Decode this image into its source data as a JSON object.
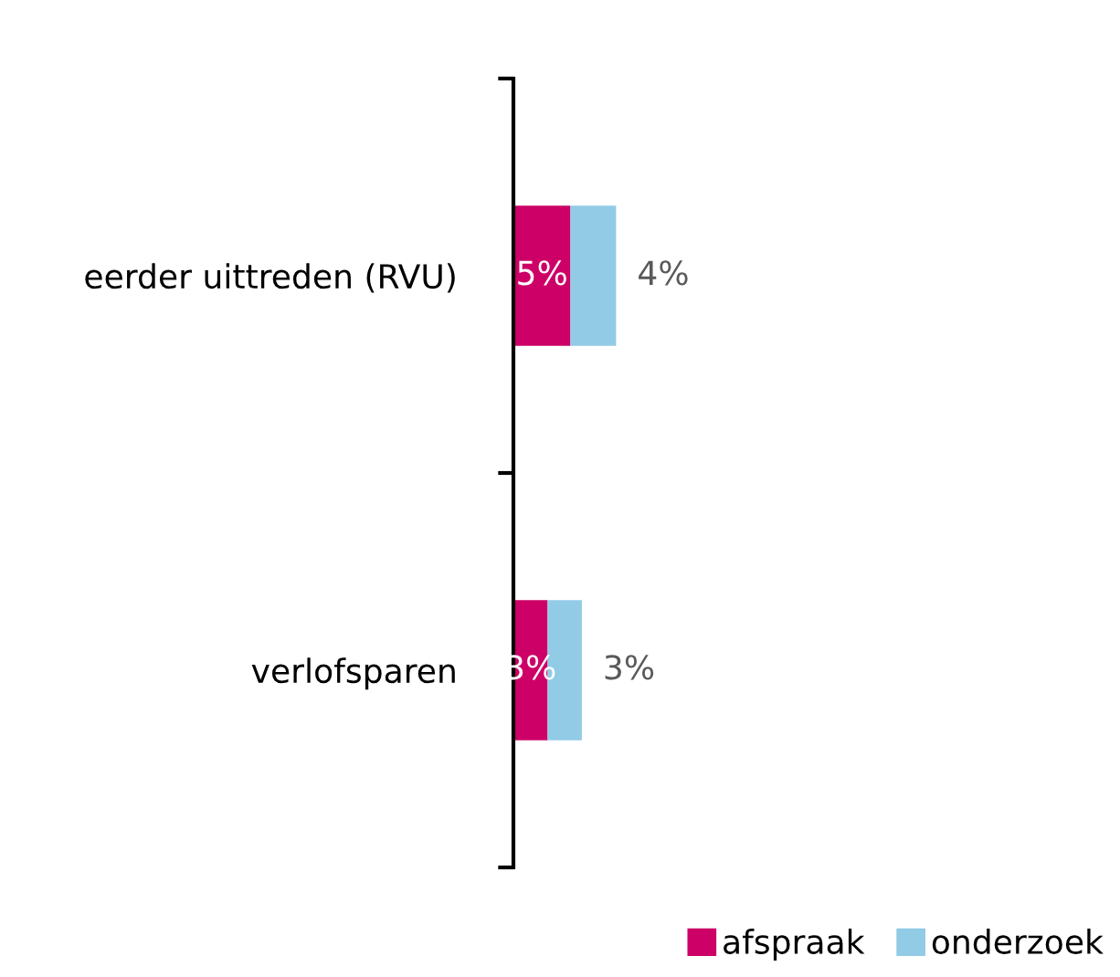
{
  "chart_data": {
    "type": "bar",
    "orientation": "horizontal",
    "stacked": true,
    "categories": [
      "eerder uittreden (RVU)",
      "verlofsparen"
    ],
    "series": [
      {
        "name": "afspraak",
        "color": "#cc0066",
        "values": [
          5,
          3
        ],
        "value_labels": [
          "5%",
          "3%"
        ]
      },
      {
        "name": "onderzoek",
        "color": "#92cbe6",
        "values": [
          4,
          3
        ],
        "value_labels": [
          "4%",
          "3%"
        ]
      }
    ],
    "legend": "bottom right"
  }
}
